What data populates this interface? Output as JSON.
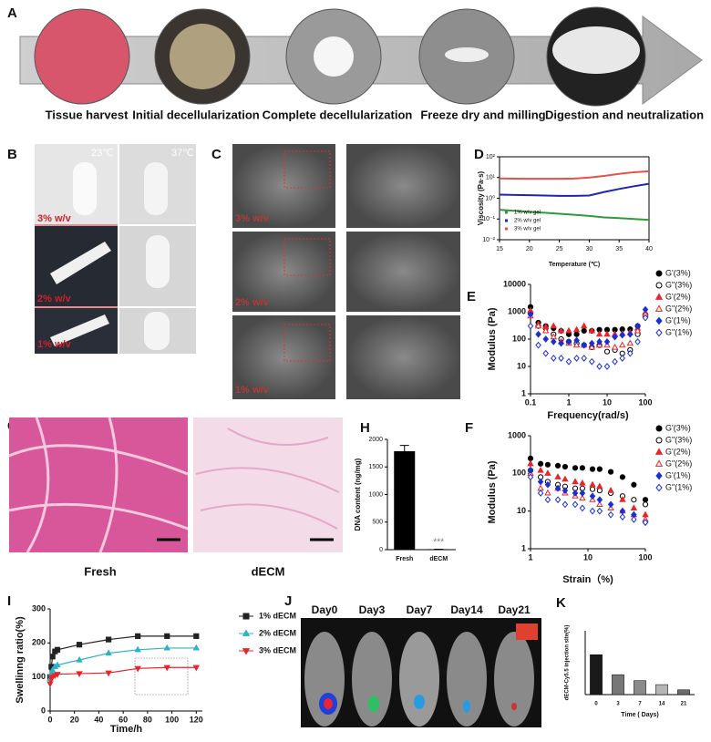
{
  "panels": [
    "A",
    "B",
    "C",
    "D",
    "E",
    "F",
    "G",
    "H",
    "I",
    "J",
    "K"
  ],
  "process_steps": [
    "Tissue harvest",
    "Initial decellularization",
    "Complete decellularization",
    "Freeze dry and milling",
    "Digestion and neutralization"
  ],
  "temperature_labels": [
    "23℃",
    "37℃"
  ],
  "gel_labels": [
    "3% w/v",
    "2% w/v",
    "1% w/v"
  ],
  "sem_labels": [
    "3% w/v",
    "2% w/v",
    "1% w/v"
  ],
  "histology_labels": [
    "Fresh",
    "dECM"
  ],
  "imaging_days": [
    "Day0",
    "Day3",
    "Day7",
    "Day14",
    "Day21"
  ],
  "chart_data": [
    {
      "type": "line",
      "x_label": "Temperature (℃)",
      "y_label": "Viscosity (Pa·s)",
      "ylog": true,
      "x": [
        15,
        17.5,
        20,
        22.5,
        25,
        27.5,
        30,
        32.5,
        35,
        37.5,
        40
      ],
      "series": [
        {
          "name": "1% w/v gel",
          "color": "#2e9a3a",
          "values": [
            0.28,
            0.25,
            0.22,
            0.2,
            0.18,
            0.16,
            0.14,
            0.12,
            0.11,
            0.1,
            0.09
          ]
        },
        {
          "name": "2% w/v gel",
          "color": "#1c25b8",
          "values": [
            1.5,
            1.45,
            1.4,
            1.35,
            1.3,
            1.3,
            1.35,
            2,
            2.8,
            3.8,
            5
          ]
        },
        {
          "name": "3% w/v gel",
          "color": "#e8504a",
          "values": [
            9,
            8.8,
            8.7,
            8.7,
            8.7,
            8.9,
            10,
            12,
            15,
            18,
            20
          ]
        }
      ],
      "xlim": [
        15,
        40
      ],
      "xticks": [
        15,
        20,
        25,
        30,
        35,
        40
      ],
      "ylim": [
        0.01,
        100
      ],
      "yticks": [
        {
          "value": 0.01,
          "label": "10⁻²"
        },
        {
          "value": 0.1,
          "label": "10⁻¹"
        },
        {
          "value": 1,
          "label": "10⁰"
        },
        {
          "value": 10,
          "label": "10¹"
        },
        {
          "value": 100,
          "label": "10²"
        }
      ],
      "legend": "lower left"
    },
    {
      "type": "scatter",
      "x_label": "Frequency(rad/s)",
      "y_label": "Modulus (Pa)",
      "xlog": true,
      "ylog": true,
      "x": [
        0.1,
        0.16,
        0.25,
        0.4,
        0.63,
        1,
        1.6,
        2.5,
        4,
        6.3,
        10,
        16,
        25,
        40,
        63,
        100
      ],
      "series": [
        {
          "name": "G'(3%)",
          "color": "#000000",
          "marker": "circle",
          "values": [
            1500,
            400,
            300,
            250,
            200,
            150,
            150,
            200,
            200,
            220,
            220,
            220,
            230,
            230,
            300,
            800
          ]
        },
        {
          "name": "G\"(3%)",
          "color": "#000000",
          "marker": "circle-open",
          "values": [
            900,
            300,
            250,
            150,
            100,
            80,
            70,
            60,
            50,
            60,
            35,
            40,
            30,
            40,
            150,
            700
          ]
        },
        {
          "name": "G'(2%)",
          "color": "#e8262a",
          "marker": "triangle",
          "values": [
            1100,
            350,
            280,
            300,
            200,
            200,
            220,
            300,
            200,
            150,
            150,
            150,
            160,
            170,
            250,
            900
          ]
        },
        {
          "name": "G\"(2%)",
          "color": "#e8262a",
          "marker": "triangle-open",
          "values": [
            700,
            300,
            200,
            120,
            80,
            70,
            60,
            60,
            50,
            60,
            60,
            50,
            60,
            70,
            200,
            800
          ]
        },
        {
          "name": "G'(1%)",
          "color": "#1a2fd6",
          "marker": "diamond",
          "values": [
            800,
            150,
            100,
            80,
            70,
            80,
            90,
            60,
            70,
            80,
            80,
            120,
            140,
            150,
            300,
            1200
          ]
        },
        {
          "name": "G\"(1%)",
          "color": "#1a2fd6",
          "marker": "diamond-open",
          "values": [
            300,
            60,
            30,
            20,
            20,
            15,
            20,
            20,
            15,
            10,
            10,
            15,
            20,
            30,
            80,
            600
          ]
        }
      ],
      "xlim": [
        0.1,
        100
      ],
      "xticks": [
        0.1,
        1,
        10,
        100
      ],
      "ylim": [
        1,
        10000
      ],
      "yticks": [
        1,
        10,
        100,
        1000,
        10000
      ],
      "legend": "right"
    },
    {
      "type": "scatter",
      "x_label": "Strain（%)",
      "y_label": "Modulus (Pa)",
      "xlog": true,
      "ylog": true,
      "x": [
        1,
        1.5,
        2,
        3,
        4,
        6,
        8,
        12,
        16,
        25,
        40,
        63,
        100
      ],
      "series": [
        {
          "name": "G'(3%)",
          "color": "#000000",
          "marker": "circle",
          "values": [
            250,
            180,
            170,
            160,
            150,
            140,
            140,
            130,
            130,
            110,
            80,
            50,
            20
          ]
        },
        {
          "name": "G\"(3%)",
          "color": "#000000",
          "marker": "circle-open",
          "values": [
            120,
            80,
            60,
            50,
            45,
            40,
            40,
            38,
            35,
            30,
            25,
            20,
            15
          ]
        },
        {
          "name": "G'(2%)",
          "color": "#e8262a",
          "marker": "triangle",
          "values": [
            180,
            120,
            100,
            80,
            70,
            60,
            55,
            50,
            45,
            35,
            20,
            12,
            8
          ]
        },
        {
          "name": "G\"(2%)",
          "color": "#e8262a",
          "marker": "triangle-open",
          "values": [
            100,
            40,
            30,
            40,
            30,
            25,
            22,
            20,
            15,
            12,
            10,
            8,
            6
          ]
        },
        {
          "name": "G'(1%)",
          "color": "#1a2fd6",
          "marker": "diamond",
          "values": [
            120,
            60,
            50,
            40,
            35,
            30,
            30,
            25,
            20,
            15,
            10,
            8,
            5
          ]
        },
        {
          "name": "G\"(1%)",
          "color": "#1a2fd6",
          "marker": "diamond-open",
          "values": [
            80,
            30,
            20,
            20,
            15,
            15,
            12,
            10,
            10,
            8,
            7,
            6,
            5
          ]
        }
      ],
      "xlim": [
        1,
        100
      ],
      "xticks": [
        1,
        10,
        100
      ],
      "ylim": [
        1,
        1000
      ],
      "yticks": [
        1,
        10,
        100,
        1000
      ],
      "legend": "right"
    },
    {
      "type": "bar",
      "y_label": "DNA content (ng/mg)",
      "categories": [
        "Fresh",
        "dECM"
      ],
      "values": [
        1780,
        5
      ],
      "errors": [
        110,
        3
      ],
      "color": "#000000",
      "annotations": [
        "***"
      ],
      "ylim": [
        0,
        2000
      ],
      "yticks": [
        0,
        500,
        1000,
        1500,
        2000
      ]
    },
    {
      "type": "line",
      "x_label": "Time/h",
      "y_label": "Swellinng ratio(%)",
      "x": [
        0,
        1,
        2,
        4,
        6,
        24,
        48,
        72,
        96,
        120
      ],
      "series": [
        {
          "name": "1% dECM",
          "color": "#222222",
          "marker": "square",
          "values": [
            100,
            130,
            160,
            175,
            180,
            195,
            210,
            220,
            220,
            220
          ]
        },
        {
          "name": "2% dECM",
          "color": "#2bb3c8",
          "marker": "triangle",
          "values": [
            95,
            110,
            120,
            130,
            135,
            150,
            170,
            180,
            185,
            185
          ]
        },
        {
          "name": "3% dECM",
          "color": "#e8262a",
          "marker": "triangle-down",
          "values": [
            80,
            95,
            100,
            105,
            108,
            110,
            112,
            125,
            128,
            128
          ]
        }
      ],
      "xlim": [
        0,
        125
      ],
      "xticks": [
        0,
        20,
        40,
        60,
        80,
        100,
        120
      ],
      "ylim": [
        0,
        300
      ],
      "yticks": [
        0,
        100,
        200,
        300
      ],
      "legend": "right"
    },
    {
      "type": "bar",
      "x_label": "Time ( Days)",
      "y_label": "dECM-Cy5.5 injection site(%)",
      "categories": [
        "0",
        "3",
        "7",
        "14",
        "21"
      ],
      "values": [
        1.0,
        0.5,
        0.35,
        0.25,
        0.12
      ],
      "colors": [
        "#1a1a1a",
        "#777777",
        "#8a8a8a",
        "#b5b5b5",
        "#6a6a6a"
      ],
      "ylim": [
        0,
        1.6
      ]
    }
  ]
}
